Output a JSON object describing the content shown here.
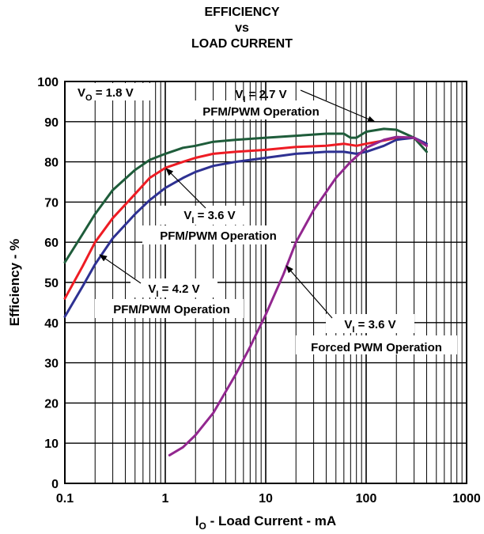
{
  "title_lines": [
    "EFFICIENCY",
    "vs",
    "LOAD CURRENT"
  ],
  "colors": {
    "vi27_pfm": "#1e5c3a",
    "vi36_pfm": "#ee1c24",
    "vi42_pfm": "#2e3192",
    "vi36_pwm": "#92278f",
    "grid": "#000000"
  },
  "chart_data": {
    "type": "line",
    "x_scale": "log",
    "xlim": [
      0.1,
      1000
    ],
    "ylim": [
      0,
      100
    ],
    "x_ticks": [
      "0.1",
      "1",
      "10",
      "100",
      "1000"
    ],
    "y_ticks": [
      "0",
      "10",
      "20",
      "30",
      "40",
      "50",
      "60",
      "70",
      "80",
      "90",
      "100"
    ],
    "grid": true,
    "xlabel": {
      "main": "I",
      "sub": "O",
      "rest": " - Load Current - mA"
    },
    "ylabel": "Efficiency - %",
    "annotations": [
      {
        "id": "vo",
        "line1": {
          "main": "V",
          "sub": "O",
          "rest": " = 1.8 V"
        }
      },
      {
        "id": "vi27",
        "line1": {
          "main": "V",
          "sub": "I",
          "rest": " = 2.7 V"
        },
        "line2": "PFM/PWM Operation"
      },
      {
        "id": "vi36",
        "line1": {
          "main": "V",
          "sub": "I",
          "rest": " = 3.6 V"
        },
        "line2": "PFM/PWM Operation"
      },
      {
        "id": "vi42",
        "line1": {
          "main": "V",
          "sub": "I",
          "rest": " = 4.2 V"
        },
        "line2": "PFM/PWM Operation"
      },
      {
        "id": "vi36pwm",
        "line1": {
          "main": "V",
          "sub": "I",
          "rest": " = 3.6 V"
        },
        "line2": "Forced PWM Operation"
      }
    ],
    "series": [
      {
        "key": "vi27_pfm",
        "x": [
          0.1,
          0.15,
          0.2,
          0.3,
          0.5,
          0.7,
          1,
          1.5,
          2,
          3,
          5,
          10,
          20,
          40,
          60,
          70,
          80,
          100,
          150,
          200,
          300,
          400
        ],
        "y": [
          55,
          62,
          67,
          73,
          78,
          80.5,
          82,
          83.5,
          84,
          85,
          85.5,
          86,
          86.5,
          87,
          87,
          86,
          86,
          87.5,
          88.2,
          88,
          86,
          82.5
        ]
      },
      {
        "key": "vi36_pfm",
        "x": [
          0.1,
          0.15,
          0.2,
          0.3,
          0.5,
          0.7,
          1,
          1.5,
          2,
          3,
          5,
          10,
          20,
          40,
          60,
          80,
          100,
          150,
          200,
          300,
          400
        ],
        "y": [
          46,
          54,
          60,
          66,
          72,
          76,
          78.5,
          80,
          81,
          82,
          82.5,
          83,
          83.7,
          84,
          84.5,
          84,
          84.5,
          85.3,
          86,
          86,
          84
        ]
      },
      {
        "key": "vi42_pfm",
        "x": [
          0.1,
          0.15,
          0.2,
          0.3,
          0.5,
          0.7,
          1,
          1.5,
          2,
          3,
          5,
          10,
          20,
          40,
          60,
          80,
          100,
          150,
          200,
          300,
          400
        ],
        "y": [
          41.5,
          49,
          54.5,
          61,
          67,
          70.5,
          73.5,
          76,
          77.5,
          79,
          80,
          81,
          82,
          82.5,
          82.5,
          82,
          82.5,
          84,
          85.5,
          86,
          84.5
        ]
      },
      {
        "key": "vi36_pwm",
        "x": [
          1.1,
          1.5,
          2,
          3,
          5,
          7,
          10,
          15,
          20,
          30,
          50,
          70,
          100,
          150,
          200,
          300,
          400
        ],
        "y": [
          7,
          9,
          12,
          17.5,
          27,
          34,
          42,
          52,
          60,
          68,
          76,
          80,
          83.5,
          85.5,
          86.2,
          86,
          84
        ]
      }
    ]
  }
}
